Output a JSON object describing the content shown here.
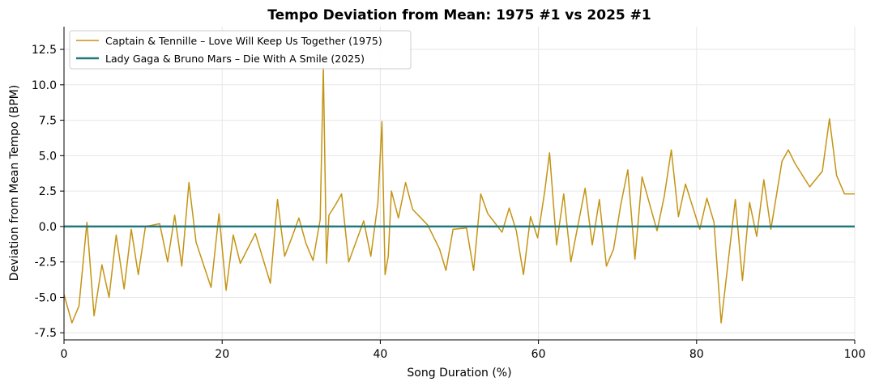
{
  "chart_data": {
    "type": "line",
    "title": "Tempo Deviation from Mean: 1975 #1 vs 2025 #1",
    "xlabel": "Song Duration (%)",
    "ylabel": "Deviation from Mean Tempo (BPM)",
    "xlim": [
      0,
      100
    ],
    "ylim": [
      -8.0,
      14.1
    ],
    "xticks": [
      0,
      20,
      40,
      60,
      80,
      100
    ],
    "yticks": [
      -7.5,
      -5.0,
      -2.5,
      0.0,
      2.5,
      5.0,
      7.5,
      10.0,
      12.5
    ],
    "grid": true,
    "legend_position": "top-left",
    "series": [
      {
        "name": "Captain & Tennille – Love Will Keep Us Together (1975)",
        "color": "#c49414",
        "x": [
          0,
          1.0,
          1.9,
          2.9,
          3.8,
          4.8,
          5.7,
          6.6,
          7.6,
          8.5,
          9.4,
          10.3,
          11.2,
          12.1,
          13.1,
          14.0,
          14.9,
          15.8,
          16.7,
          18.6,
          19.6,
          20.5,
          21.4,
          22.3,
          24.2,
          26.1,
          27.0,
          27.9,
          28.8,
          29.7,
          30.6,
          31.5,
          32.4,
          32.8,
          33.2,
          33.5,
          34.3,
          35.1,
          36.0,
          37.9,
          38.8,
          39.7,
          40.2,
          40.6,
          41.0,
          41.4,
          42.3,
          43.2,
          44.1,
          46.0,
          47.5,
          48.3,
          49.2,
          50.9,
          51.8,
          52.7,
          53.6,
          55.4,
          56.3,
          57.2,
          58.1,
          59.0,
          59.9,
          60.8,
          61.4,
          62.3,
          63.2,
          64.1,
          65.9,
          66.8,
          67.7,
          68.6,
          69.5,
          70.4,
          71.3,
          72.2,
          73.1,
          75.0,
          75.9,
          76.8,
          77.7,
          78.6,
          80.4,
          81.3,
          82.2,
          83.1,
          84.9,
          85.8,
          86.7,
          87.6,
          88.5,
          89.4,
          90.8,
          91.6,
          92.5,
          94.3,
          95.9,
          96.8,
          97.7,
          98.7,
          100
        ],
        "y": [
          -4.8,
          -6.8,
          -5.6,
          0.3,
          -6.3,
          -2.7,
          -5.0,
          -0.6,
          -4.4,
          -0.2,
          -3.4,
          0.0,
          0.1,
          0.2,
          -2.5,
          0.8,
          -2.8,
          3.1,
          -1.1,
          -4.3,
          0.9,
          -4.5,
          -0.6,
          -2.6,
          -0.5,
          -4.0,
          1.9,
          -2.1,
          -0.8,
          0.6,
          -1.2,
          -2.4,
          0.5,
          11.2,
          -2.6,
          0.8,
          1.5,
          2.3,
          -2.5,
          0.4,
          -2.1,
          1.7,
          7.4,
          -3.4,
          -2.1,
          2.5,
          0.6,
          3.1,
          1.2,
          0.1,
          -1.6,
          -3.1,
          -0.2,
          -0.1,
          -3.1,
          2.3,
          0.9,
          -0.4,
          1.3,
          -0.3,
          -3.4,
          0.7,
          -0.8,
          2.5,
          5.2,
          -1.3,
          2.3,
          -2.5,
          2.7,
          -1.3,
          1.9,
          -2.8,
          -1.6,
          1.5,
          4.0,
          -2.3,
          3.5,
          -0.3,
          2.1,
          5.4,
          0.7,
          3.0,
          -0.2,
          2.0,
          0.3,
          -6.8,
          1.9,
          -3.8,
          1.7,
          -0.7,
          3.3,
          -0.2,
          4.6,
          5.4,
          4.4,
          2.8,
          3.9,
          7.6,
          3.6,
          2.3,
          2.3
        ]
      },
      {
        "name": "Lady Gaga & Bruno Mars – Die With A Smile (2025)",
        "color": "#22787d",
        "x": [
          0,
          100
        ],
        "y": [
          0.0,
          0.0
        ]
      }
    ]
  }
}
